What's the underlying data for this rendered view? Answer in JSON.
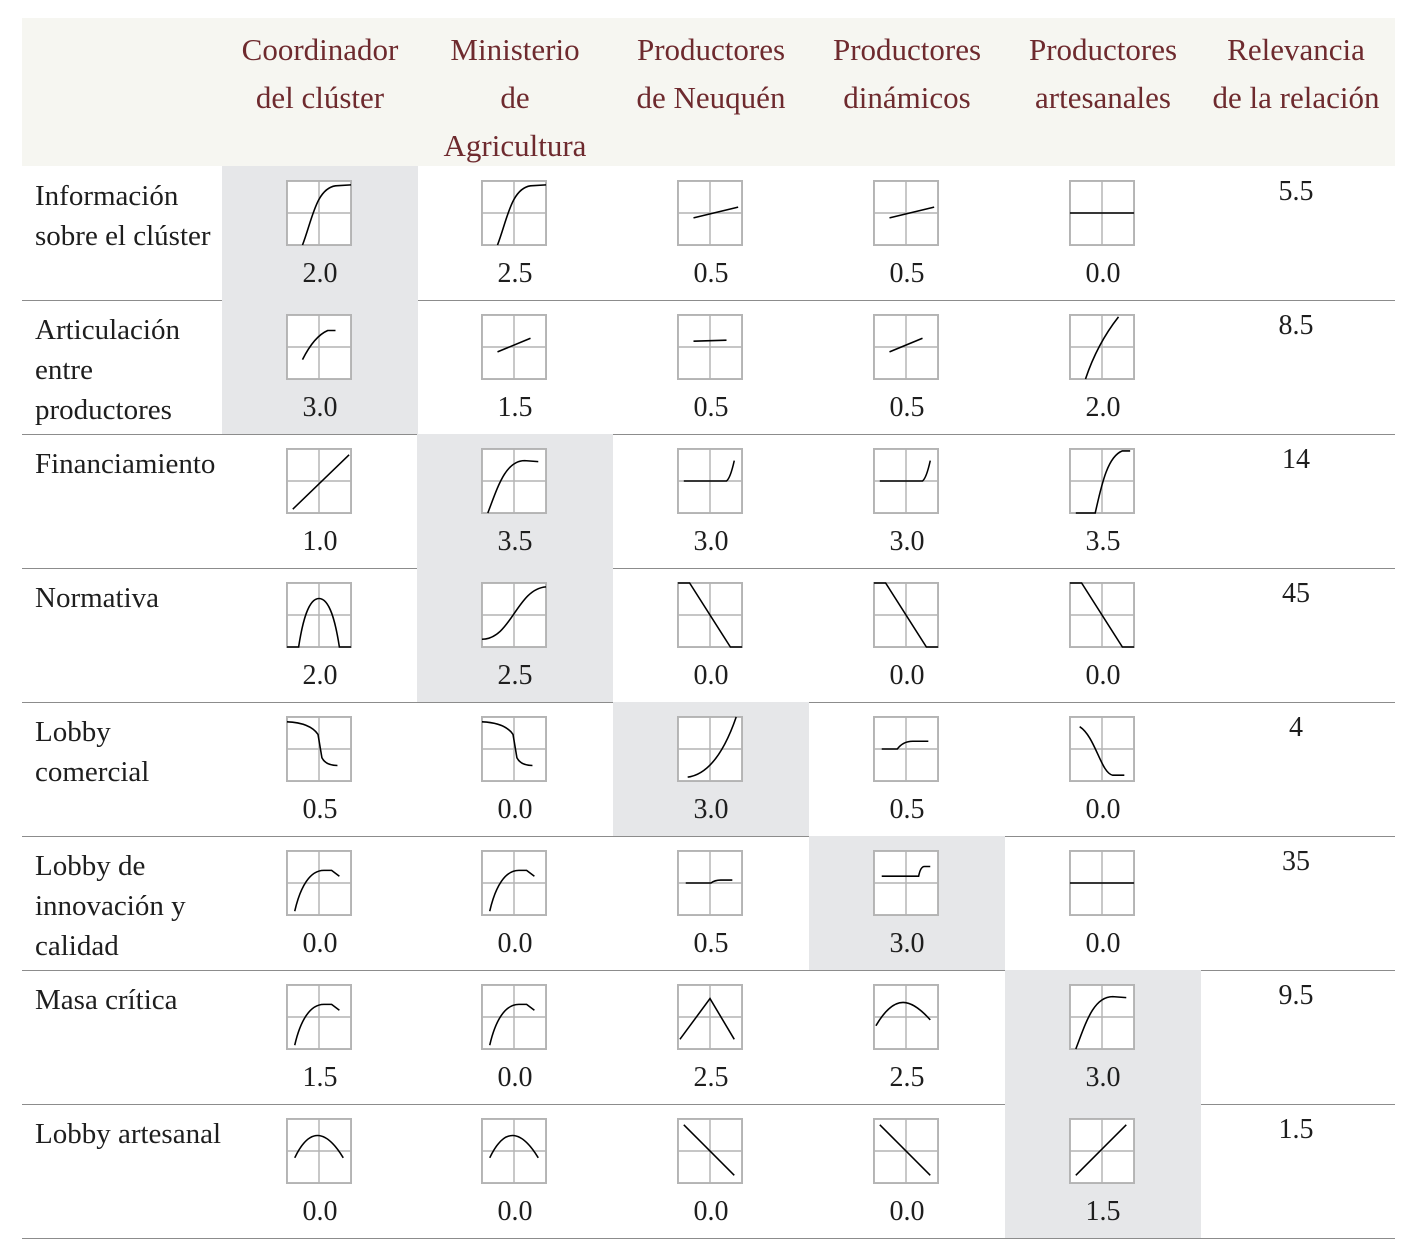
{
  "colors": {
    "header_bg": "#f6f6f1",
    "header_text": "#6e2a2e",
    "highlight": "#e6e7e9"
  },
  "headers": [
    "Coordinador del clúster",
    "Ministerio de Agricultura",
    "Productores de Neuquén",
    "Productores dinámicos",
    "Productores artesanales",
    "Relevancia de la relación"
  ],
  "header_lines": [
    [
      "Coordinador",
      "del clúster"
    ],
    [
      "Ministerio",
      "de",
      "Agricultura"
    ],
    [
      "Productores",
      "de Neuquén"
    ],
    [
      "Productores",
      "dinámicos"
    ],
    [
      "Productores",
      "artesanales"
    ],
    [
      "Relevancia",
      "de la relación"
    ]
  ],
  "rows": [
    {
      "label": "Información sobre el clúster",
      "relevance": "5.5",
      "highlight": 0,
      "cells": [
        {
          "value": "2.0",
          "curve": "saturating-rise"
        },
        {
          "value": "2.5",
          "curve": "saturating-rise"
        },
        {
          "value": "0.5",
          "curve": "slight-rise"
        },
        {
          "value": "0.5",
          "curve": "slight-rise"
        },
        {
          "value": "0.0",
          "curve": "flat"
        }
      ]
    },
    {
      "label": "Articulación entre productores",
      "relevance": "8.5",
      "highlight": 0,
      "cells": [
        {
          "value": "3.0",
          "curve": "short-concave-rise"
        },
        {
          "value": "1.5",
          "curve": "short-linear-rise"
        },
        {
          "value": "0.5",
          "curve": "short-flat"
        },
        {
          "value": "0.5",
          "curve": "short-linear-rise"
        },
        {
          "value": "2.0",
          "curve": "steep-concave-rise"
        }
      ]
    },
    {
      "label": "Financiamiento",
      "relevance": "14",
      "highlight": 1,
      "cells": [
        {
          "value": "1.0",
          "curve": "linear-rise"
        },
        {
          "value": "3.5",
          "curve": "saturating-rise-plateau"
        },
        {
          "value": "3.0",
          "curve": "flat-then-step-up"
        },
        {
          "value": "3.0",
          "curve": "flat-then-step-up"
        },
        {
          "value": "3.5",
          "curve": "threshold-steep-rise"
        }
      ]
    },
    {
      "label": "Normativa",
      "relevance": "45",
      "highlight": 1,
      "cells": [
        {
          "value": "2.0",
          "curve": "hump"
        },
        {
          "value": "2.5",
          "curve": "s-curve"
        },
        {
          "value": "0.0",
          "curve": "linear-decline"
        },
        {
          "value": "0.0",
          "curve": "linear-decline"
        },
        {
          "value": "0.0",
          "curve": "linear-decline"
        }
      ]
    },
    {
      "label": "Lobby comercial",
      "relevance": "4",
      "highlight": 2,
      "cells": [
        {
          "value": "0.5",
          "curve": "step-drop"
        },
        {
          "value": "0.0",
          "curve": "step-drop"
        },
        {
          "value": "3.0",
          "curve": "convex-rise"
        },
        {
          "value": "0.5",
          "curve": "small-step-up"
        },
        {
          "value": "0.0",
          "curve": "s-decline"
        }
      ]
    },
    {
      "label": "Lobby de innovación y calidad",
      "relevance": "35",
      "highlight": 3,
      "cells": [
        {
          "value": "0.0",
          "curve": "rise-plateau-dip"
        },
        {
          "value": "0.0",
          "curve": "rise-plateau-dip"
        },
        {
          "value": "0.5",
          "curve": "low-step-up"
        },
        {
          "value": "3.0",
          "curve": "late-step-up"
        },
        {
          "value": "0.0",
          "curve": "flat"
        }
      ]
    },
    {
      "label": "Masa crítica",
      "relevance": "9.5",
      "highlight": 4,
      "cells": [
        {
          "value": "1.5",
          "curve": "rise-plateau-dip"
        },
        {
          "value": "0.0",
          "curve": "rise-plateau-dip"
        },
        {
          "value": "2.5",
          "curve": "peak"
        },
        {
          "value": "2.5",
          "curve": "gentle-hump"
        },
        {
          "value": "3.0",
          "curve": "saturating-rise-plateau"
        }
      ]
    },
    {
      "label": "Lobby artesanal",
      "relevance": "1.5",
      "highlight": 4,
      "cells": [
        {
          "value": "0.0",
          "curve": "arch"
        },
        {
          "value": "0.0",
          "curve": "arch"
        },
        {
          "value": "0.0",
          "curve": "diagonal-decline"
        },
        {
          "value": "0.0",
          "curve": "diagonal-decline"
        },
        {
          "value": "1.5",
          "curve": "diagonal-rise"
        }
      ]
    }
  ]
}
